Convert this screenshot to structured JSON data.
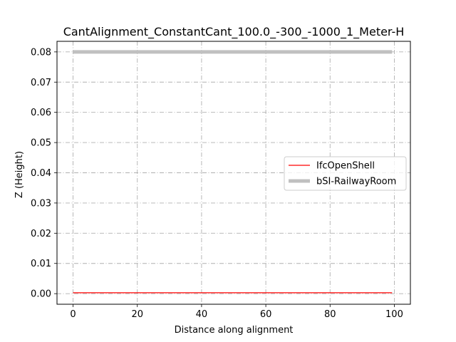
{
  "chart_data": {
    "type": "line",
    "title": "CantAlignment_ConstantCant_100.0_-300_-1000_1_Meter-H",
    "xlabel": "Distance along alignment",
    "ylabel": "Z (Height)",
    "xlim": [
      -5,
      105
    ],
    "ylim": [
      -0.0035,
      0.0835
    ],
    "xticks": [
      0,
      20,
      40,
      60,
      80,
      100
    ],
    "xtick_labels": [
      "0",
      "20",
      "40",
      "60",
      "80",
      "100"
    ],
    "yticks": [
      0.0,
      0.01,
      0.02,
      0.03,
      0.04,
      0.05,
      0.06,
      0.07,
      0.08
    ],
    "ytick_labels": [
      "0.00",
      "0.01",
      "0.02",
      "0.03",
      "0.04",
      "0.05",
      "0.06",
      "0.07",
      "0.08"
    ],
    "grid": true,
    "legend_position": "center-right",
    "series": [
      {
        "name": "IfcOpenShell",
        "color": "#ff0000",
        "x": [
          0,
          99.3
        ],
        "y": [
          0.0003,
          0.0003
        ]
      },
      {
        "name": "bSI-RailwayRoom",
        "color": "#c0c0c0",
        "x": [
          0,
          99.3
        ],
        "y": [
          0.08,
          0.08
        ]
      }
    ]
  }
}
